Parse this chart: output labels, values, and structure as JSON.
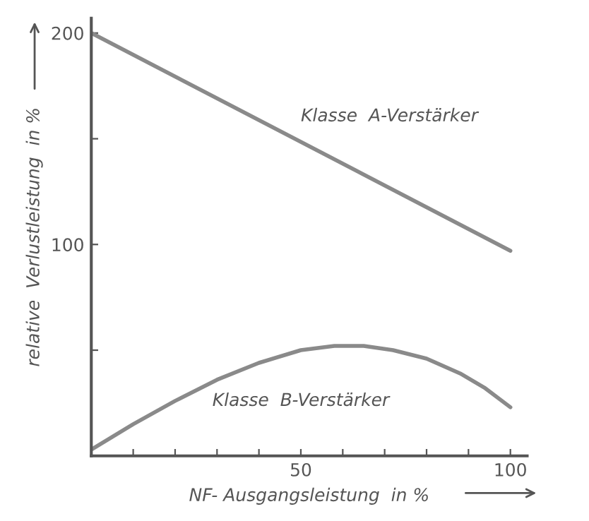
{
  "chart_data": {
    "type": "line",
    "xlabel": "NF- Ausgangsleistung  in %",
    "ylabel": "relative  Verlustleistung  in %",
    "xlim": [
      0,
      104
    ],
    "ylim": [
      0,
      207
    ],
    "xticks": [
      {
        "value": 10,
        "label": null
      },
      {
        "value": 20,
        "label": null
      },
      {
        "value": 30,
        "label": null
      },
      {
        "value": 40,
        "label": null
      },
      50,
      {
        "value": 60,
        "label": null
      },
      {
        "value": 70,
        "label": null
      },
      {
        "value": 80,
        "label": null
      },
      {
        "value": 90,
        "label": null
      },
      100
    ],
    "yticks": [
      {
        "value": 50,
        "label": null
      },
      100,
      {
        "value": 150,
        "label": null
      },
      200
    ],
    "grid": false,
    "legend": false,
    "series": [
      {
        "name": "Klasse  A-Verstärker",
        "color": "#8a8a8a",
        "x": [
          0,
          100
        ],
        "values": [
          200,
          97
        ]
      },
      {
        "name": "Klasse  B-Verstärker",
        "color": "#8a8a8a",
        "x": [
          0,
          10,
          20,
          30,
          40,
          50,
          58,
          65,
          72,
          80,
          88,
          94,
          100
        ],
        "values": [
          3,
          15,
          26,
          36,
          44,
          50,
          52,
          52,
          50,
          46,
          39,
          32,
          23
        ]
      }
    ]
  }
}
